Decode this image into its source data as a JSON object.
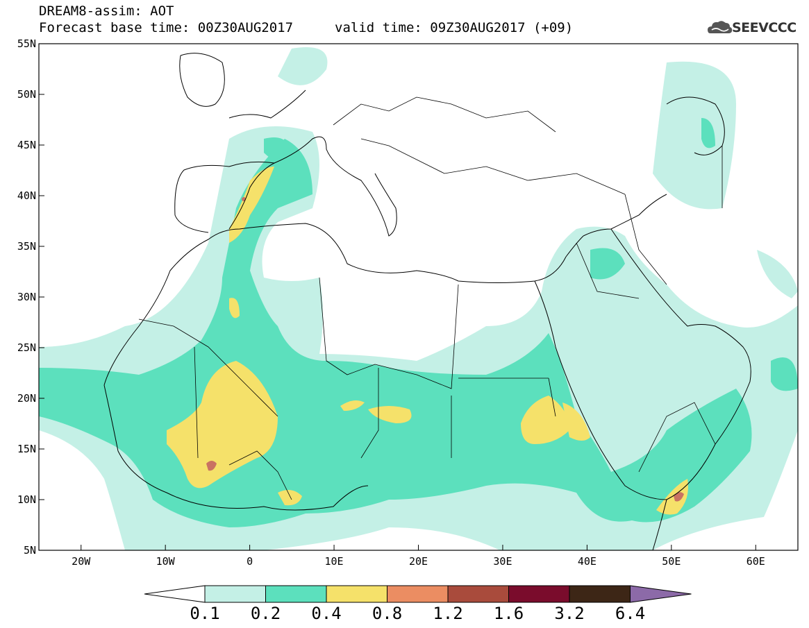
{
  "title": {
    "line1": "DREAM8-assim: AOT",
    "line2": "Forecast base time: 00Z30AUG2017",
    "line3": "valid time: 09Z30AUG2017 (+09)"
  },
  "logo": {
    "text": "SEEVCCC",
    "icon": "cloud-logo-icon"
  },
  "axes": {
    "lat_labels": [
      "55N",
      "50N",
      "45N",
      "40N",
      "35N",
      "30N",
      "25N",
      "20N",
      "15N",
      "10N",
      "5N"
    ],
    "lon_labels": [
      "20W",
      "10W",
      "0",
      "10E",
      "20E",
      "30E",
      "40E",
      "50E",
      "60E"
    ],
    "lon_range": [
      -25,
      65
    ],
    "lat_range": [
      5,
      55
    ]
  },
  "colorbar": {
    "labels": [
      "0.1",
      "0.2",
      "0.4",
      "0.8",
      "1.2",
      "1.6",
      "3.2",
      "6.4"
    ],
    "colors": [
      "#ffffff",
      "#c4f0e6",
      "#5ce0bd",
      "#f5e16a",
      "#eb8d62",
      "#a94b3c",
      "#7a0c2c",
      "#3d2616",
      "#8c6aa8"
    ]
  }
}
